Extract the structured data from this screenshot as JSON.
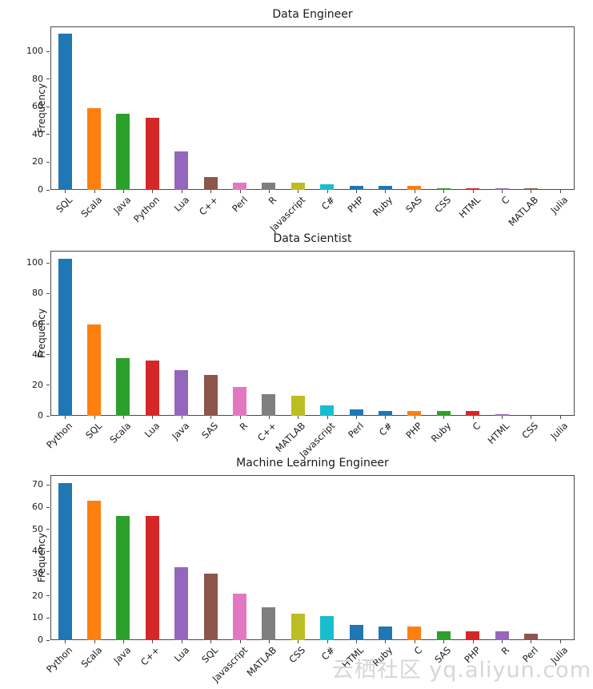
{
  "watermark": {
    "text": "云栖社区 yq.aliyun.com"
  },
  "palette": {
    "blue": "#1f77b4",
    "orange": "#ff7f0e",
    "green": "#2ca02c",
    "red": "#d62728",
    "purple": "#9467bd",
    "brown": "#8c564b",
    "pink": "#e377c2",
    "gray": "#7f7f7f",
    "olive": "#bcbd22",
    "cyan": "#17becf"
  },
  "chart_data": [
    {
      "type": "bar",
      "title": "Data Engineer",
      "xlabel": "",
      "ylabel": "Frequency",
      "categories": [
        "SQL",
        "Scala",
        "Java",
        "Python",
        "Lua",
        "C++",
        "Perl",
        "R",
        "Javascript",
        "C#",
        "PHP",
        "Ruby",
        "SAS",
        "CSS",
        "HTML",
        "C",
        "MATLAB",
        "Julia"
      ],
      "values": [
        113,
        59,
        55,
        52,
        28,
        9,
        5,
        5,
        5,
        4,
        3,
        3,
        3,
        1,
        1,
        1,
        1,
        0
      ],
      "colors": [
        "#1f77b4",
        "#ff7f0e",
        "#2ca02c",
        "#d62728",
        "#9467bd",
        "#8c564b",
        "#e377c2",
        "#7f7f7f",
        "#bcbd22",
        "#17becf",
        "#1f77b4",
        "#1f77b4",
        "#ff7f0e",
        "#2ca02c",
        "#d62728",
        "#9467bd",
        "#8c564b",
        "#e377c2"
      ],
      "yticks": [
        0,
        20,
        40,
        60,
        80,
        100
      ],
      "ylim": [
        0,
        118
      ],
      "grid": false,
      "legend": null
    },
    {
      "type": "bar",
      "title": "Data Scientist",
      "xlabel": "",
      "ylabel": "Frequency",
      "categories": [
        "Python",
        "SQL",
        "Scala",
        "Lua",
        "Java",
        "SAS",
        "R",
        "C++",
        "MATLAB",
        "Javascript",
        "Perl",
        "C#",
        "PHP",
        "Ruby",
        "C",
        "HTML",
        "CSS",
        "Julia"
      ],
      "values": [
        103,
        60,
        38,
        36,
        30,
        27,
        19,
        14,
        13,
        7,
        4,
        3,
        3,
        3,
        3,
        1,
        0,
        0
      ],
      "colors": [
        "#1f77b4",
        "#ff7f0e",
        "#2ca02c",
        "#d62728",
        "#9467bd",
        "#8c564b",
        "#e377c2",
        "#7f7f7f",
        "#bcbd22",
        "#17becf",
        "#1f77b4",
        "#1f77b4",
        "#ff7f0e",
        "#2ca02c",
        "#d62728",
        "#9467bd",
        "#8c564b",
        "#e377c2"
      ],
      "yticks": [
        0,
        20,
        40,
        60,
        80,
        100
      ],
      "ylim": [
        0,
        108
      ],
      "grid": false,
      "legend": null
    },
    {
      "type": "bar",
      "title": "Machine Learning Engineer",
      "xlabel": "",
      "ylabel": "Frequency",
      "categories": [
        "Python",
        "Scala",
        "Java",
        "C++",
        "Lua",
        "SQL",
        "Javascript",
        "MATLAB",
        "CSS",
        "C#",
        "HTML",
        "Ruby",
        "C",
        "SAS",
        "PHP",
        "R",
        "Perl",
        "Julia"
      ],
      "values": [
        71,
        63,
        56,
        56,
        33,
        30,
        21,
        15,
        12,
        11,
        7,
        6,
        6,
        4,
        4,
        4,
        3,
        0
      ],
      "colors": [
        "#1f77b4",
        "#ff7f0e",
        "#2ca02c",
        "#d62728",
        "#9467bd",
        "#8c564b",
        "#e377c2",
        "#7f7f7f",
        "#bcbd22",
        "#17becf",
        "#1f77b4",
        "#1f77b4",
        "#ff7f0e",
        "#2ca02c",
        "#d62728",
        "#9467bd",
        "#8c564b",
        "#e377c2"
      ],
      "yticks": [
        0,
        10,
        20,
        30,
        40,
        50,
        60,
        70
      ],
      "ylim": [
        0,
        74.5
      ],
      "grid": false,
      "legend": null
    }
  ]
}
